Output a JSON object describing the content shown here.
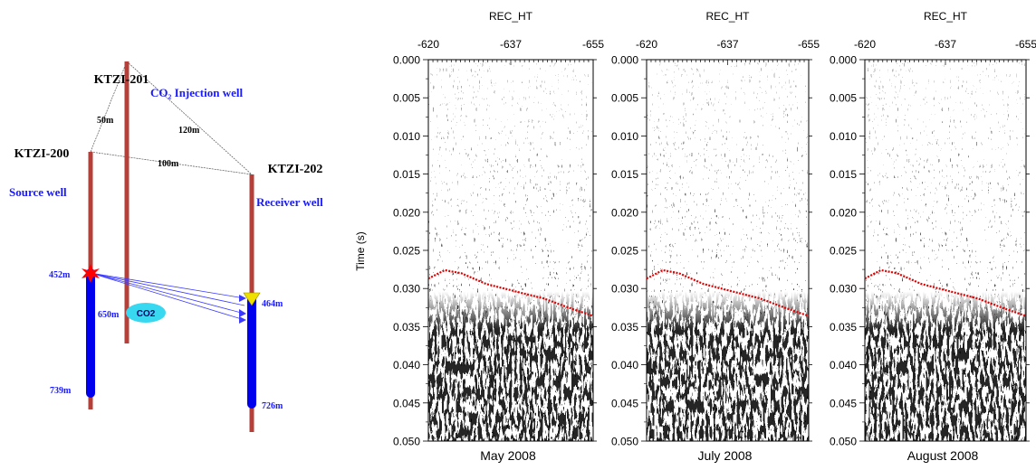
{
  "diagram": {
    "wells": [
      {
        "name": "KTZI-201",
        "role": "CO₂ Injection well",
        "bottom_depth": "650m"
      },
      {
        "name": "KTZI-200",
        "role": "Source well",
        "source_depth": "452m",
        "bottom_depth": "739m"
      },
      {
        "name": "KTZI-202",
        "role": "Receiver well",
        "receiver_depth": "464m",
        "bottom_depth": "726m"
      }
    ],
    "distances": {
      "d200_201": "50m",
      "d201_202": "120m",
      "d200_202": "100m"
    },
    "co2_label": "CO2",
    "colors": {
      "well": "#b5403a",
      "blue": "#0000ee",
      "label_blue": "#1a1aff",
      "co2": "#38d8f0",
      "source": "#ff0000",
      "receiver": "#f0e000"
    }
  },
  "seismic": {
    "y_axis_label": "Time (s)",
    "y_ticks": [
      "0.000",
      "0.005",
      "0.010",
      "0.015",
      "0.020",
      "0.025",
      "0.030",
      "0.035",
      "0.040",
      "0.045",
      "0.050"
    ],
    "panels": [
      {
        "title": "REC_HT",
        "x_ticks": [
          "-620",
          "-637",
          "-655"
        ],
        "date": "May 2008"
      },
      {
        "title": "REC_HT",
        "x_ticks": [
          "-620",
          "-637",
          "-655"
        ],
        "date": "July 2008"
      },
      {
        "title": "REC_HT",
        "x_ticks": [
          "-620",
          "-637",
          "-655"
        ],
        "date": "August 2008"
      }
    ],
    "pick_color": "#e00000"
  }
}
